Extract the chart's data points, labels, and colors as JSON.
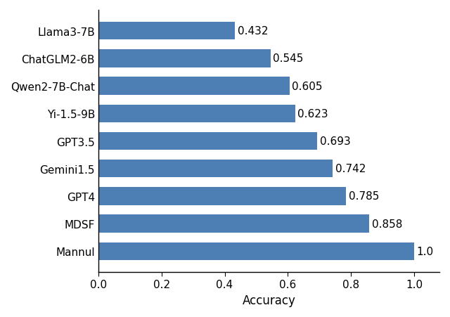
{
  "categories": [
    "Mannul",
    "MDSF",
    "GPT4",
    "Gemini1.5",
    "GPT3.5",
    "Yi-1.5-9B",
    "Qwen2-7B-Chat",
    "ChatGLM2-6B",
    "Llama3-7B"
  ],
  "values": [
    1.0,
    0.858,
    0.785,
    0.742,
    0.693,
    0.623,
    0.605,
    0.545,
    0.432
  ],
  "value_labels": [
    "1.0",
    "0.858",
    "0.785",
    "0.742",
    "0.693",
    "0.623",
    "0.605",
    "0.545",
    "0.432"
  ],
  "bar_color": "#4d7fb5",
  "xlabel": "Accuracy",
  "xlim": [
    0.0,
    1.08
  ],
  "xticks": [
    0.0,
    0.2,
    0.4,
    0.6,
    0.8,
    1.0
  ],
  "label_fontsize": 12,
  "tick_fontsize": 11,
  "value_label_fontsize": 11,
  "bar_height": 0.65,
  "background_color": "#ffffff",
  "spine_color": "#000000"
}
